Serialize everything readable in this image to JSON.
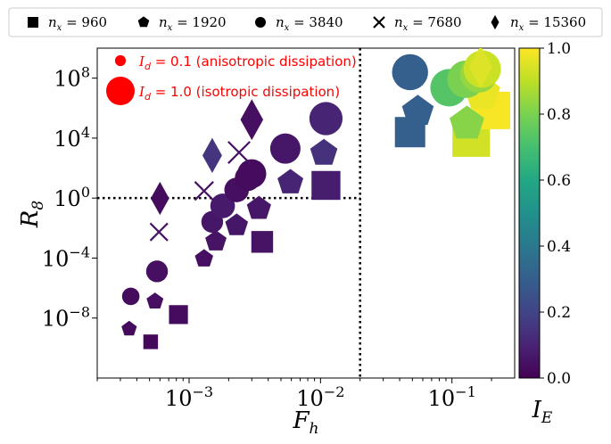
{
  "chart_data": {
    "type": "scatter",
    "xlabel": "F_h",
    "ylabel": "R_8",
    "colorbar_label": "I_E",
    "xscale": "log",
    "yscale": "log",
    "xlim": [
      0.0002,
      0.3
    ],
    "ylim": [
      1e-12,
      10000000000.0
    ],
    "x_ticks": [
      0.001,
      0.01,
      0.1
    ],
    "x_tick_labels": [
      {
        "base": "10",
        "exp": "−3"
      },
      {
        "base": "10",
        "exp": "−2"
      },
      {
        "base": "10",
        "exp": "−1"
      }
    ],
    "y_ticks": [
      100000000.0,
      10000.0,
      1,
      0.0001,
      1e-08
    ],
    "y_tick_labels": [
      {
        "base": "10",
        "exp": "8"
      },
      {
        "base": "10",
        "exp": "4"
      },
      {
        "base": "10",
        "exp": "0"
      },
      {
        "base": "10",
        "exp": "−4"
      },
      {
        "base": "10",
        "exp": "−8"
      }
    ],
    "colorbar": {
      "range": [
        0,
        1
      ],
      "ticks": [
        "0.0",
        "0.2",
        "0.4",
        "0.6",
        "0.8",
        "1.0"
      ],
      "colormap": "viridis"
    },
    "reference_lines": {
      "horizontal_y": 1,
      "vertical_x": 0.02,
      "style": "dotted"
    },
    "legend": {
      "placement": "top",
      "entries": [
        {
          "marker": "square",
          "label_var": "n",
          "label_sub": "x",
          "label_val": " = 960"
        },
        {
          "marker": "pentagon",
          "label_var": "n",
          "label_sub": "x",
          "label_val": " = 1920"
        },
        {
          "marker": "circle",
          "label_var": "n",
          "label_sub": "x",
          "label_val": " = 3840"
        },
        {
          "marker": "cross",
          "label_var": "n",
          "label_sub": "x",
          "label_val": " = 7680"
        },
        {
          "marker": "diamond",
          "label_var": "n",
          "label_sub": "x",
          "label_val": " = 15360"
        }
      ]
    },
    "size_annotations": [
      {
        "Id": 0.1,
        "text_math": "I",
        "text_sub": "d",
        "text_rest": " = 0.1 (anisotropic dissipation)",
        "color": "#ff0000"
      },
      {
        "Id": 1.0,
        "text_math": "I",
        "text_sub": "d",
        "text_rest": " = 1.0 (isotropic dissipation)",
        "color": "#ff0000"
      }
    ],
    "series": [
      {
        "name": "n_x = 960",
        "marker": "square",
        "points": [
          {
            "x": 0.00051,
            "y": 2.6e-10,
            "IE": 0.02,
            "Id": 0.2
          },
          {
            "x": 0.00083,
            "y": 1.7e-08,
            "IE": 0.03,
            "Id": 0.35
          },
          {
            "x": 0.0036,
            "y": 0.0012,
            "IE": 0.05,
            "Id": 0.45
          },
          {
            "x": 0.011,
            "y": 7.0,
            "IE": 0.08,
            "Id": 0.7
          },
          {
            "x": 0.048,
            "y": 25000.0,
            "IE": 0.3,
            "Id": 0.75
          },
          {
            "x": 0.14,
            "y": 10000.0,
            "IE": 0.93,
            "Id": 1.0
          },
          {
            "x": 0.2,
            "y": 700000.0,
            "IE": 0.99,
            "Id": 1.0
          }
        ]
      },
      {
        "name": "n_x = 1920",
        "marker": "pentagon",
        "points": [
          {
            "x": 0.00035,
            "y": 1.9e-09,
            "IE": 0.03,
            "Id": 0.2
          },
          {
            "x": 0.00055,
            "y": 1.3e-07,
            "IE": 0.04,
            "Id": 0.25
          },
          {
            "x": 0.0013,
            "y": 9e-05,
            "IE": 0.04,
            "Id": 0.3
          },
          {
            "x": 0.0016,
            "y": 0.0013,
            "IE": 0.05,
            "Id": 0.4
          },
          {
            "x": 0.0023,
            "y": 0.015,
            "IE": 0.06,
            "Id": 0.45
          },
          {
            "x": 0.0034,
            "y": 0.2,
            "IE": 0.06,
            "Id": 0.5
          },
          {
            "x": 0.0059,
            "y": 11,
            "IE": 0.1,
            "Id": 0.55
          },
          {
            "x": 0.0106,
            "y": 1000.0,
            "IE": 0.14,
            "Id": 0.6
          },
          {
            "x": 0.055,
            "y": 600000.0,
            "IE": 0.3,
            "Id": 0.75
          },
          {
            "x": 0.13,
            "y": 90000.0,
            "IE": 0.82,
            "Id": 0.85
          },
          {
            "x": 0.17,
            "y": 10000000.0,
            "IE": 0.97,
            "Id": 0.9
          }
        ]
      },
      {
        "name": "n_x = 3840",
        "marker": "circle",
        "points": [
          {
            "x": 0.00036,
            "y": 2.8e-07,
            "IE": 0.03,
            "Id": 0.3
          },
          {
            "x": 0.00057,
            "y": 1.3e-05,
            "IE": 0.04,
            "Id": 0.45
          },
          {
            "x": 0.0015,
            "y": 0.026,
            "IE": 0.06,
            "Id": 0.45
          },
          {
            "x": 0.0018,
            "y": 0.3,
            "IE": 0.07,
            "Id": 0.55
          },
          {
            "x": 0.0023,
            "y": 3.5,
            "IE": 0.04,
            "Id": 0.55
          },
          {
            "x": 0.0028,
            "y": 22,
            "IE": 0.03,
            "Id": 0.6
          },
          {
            "x": 0.003,
            "y": 42,
            "IE": 0.03,
            "Id": 0.7
          },
          {
            "x": 0.0054,
            "y": 2000.0,
            "IE": 0.06,
            "Id": 0.75
          },
          {
            "x": 0.011,
            "y": 200000.0,
            "IE": 0.1,
            "Id": 0.85
          },
          {
            "x": 0.048,
            "y": 250000000.0,
            "IE": 0.3,
            "Id": 0.95
          },
          {
            "x": 0.095,
            "y": 23000000.0,
            "IE": 0.73,
            "Id": 1.0
          },
          {
            "x": 0.128,
            "y": 85000000.0,
            "IE": 0.8,
            "Id": 1.0
          },
          {
            "x": 0.16,
            "y": 190000000.0,
            "IE": 0.84,
            "Id": 1.0
          },
          {
            "x": 0.17,
            "y": 400000000.0,
            "IE": 0.92,
            "Id": 1.0
          }
        ]
      },
      {
        "name": "n_x = 7680",
        "marker": "cross",
        "points": [
          {
            "x": 0.00059,
            "y": 0.0055,
            "IE": 0.05,
            "Id": 0.5
          },
          {
            "x": 0.0013,
            "y": 3.0,
            "IE": 0.05,
            "Id": 0.55
          },
          {
            "x": 0.0024,
            "y": 1100.0,
            "IE": 0.05,
            "Id": 0.7
          }
        ]
      },
      {
        "name": "n_x = 15360",
        "marker": "diamond",
        "points": [
          {
            "x": 0.0006,
            "y": 0.95,
            "IE": 0.03,
            "Id": 0.55
          },
          {
            "x": 0.0015,
            "y": 700.0,
            "IE": 0.15,
            "Id": 0.6
          },
          {
            "x": 0.003,
            "y": 170000.0,
            "IE": 0.04,
            "Id": 0.75
          },
          {
            "x": 0.165,
            "y": 550000000.0,
            "IE": 0.95,
            "Id": 0.8
          }
        ]
      }
    ]
  }
}
